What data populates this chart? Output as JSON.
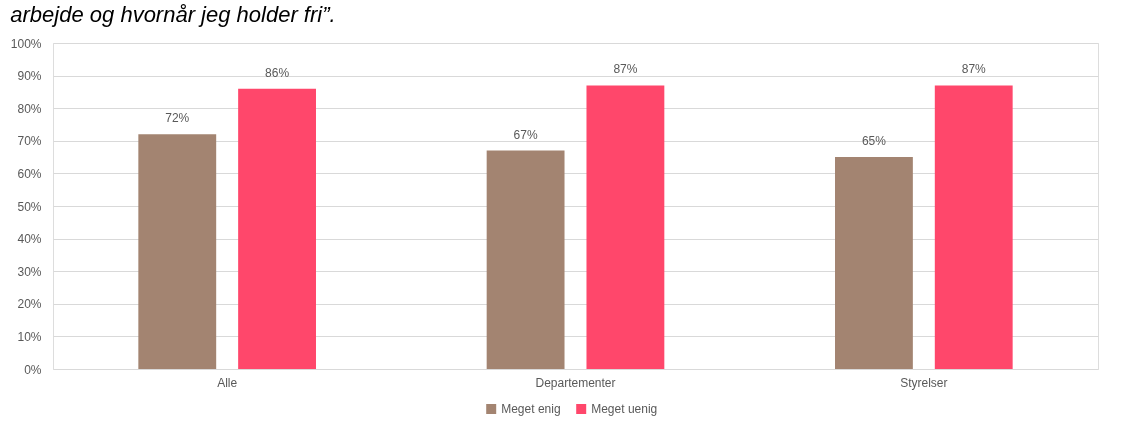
{
  "chart_data": {
    "type": "bar",
    "title": "arbejde og hvornår jeg holder fri”.",
    "categories": [
      "Alle",
      "Departementer",
      "Styrelser"
    ],
    "series": [
      {
        "name": "Meget enig",
        "color": "#a38471",
        "values": [
          72,
          67,
          65
        ],
        "value_labels": [
          "72%",
          "67%",
          "65%"
        ]
      },
      {
        "name": "Meget uenig",
        "color": "#ff476b",
        "values": [
          86,
          87,
          87
        ],
        "value_labels": [
          "86%",
          "87%",
          "87%"
        ]
      }
    ],
    "ylim": [
      0,
      100
    ],
    "yticks": [
      {
        "value": 0,
        "label": "0%"
      },
      {
        "value": 10,
        "label": "10%"
      },
      {
        "value": 20,
        "label": "20%"
      },
      {
        "value": 30,
        "label": "30%"
      },
      {
        "value": 40,
        "label": "40%"
      },
      {
        "value": 50,
        "label": "50%"
      },
      {
        "value": 60,
        "label": "60%"
      },
      {
        "value": 70,
        "label": "70%"
      },
      {
        "value": 80,
        "label": "80%"
      },
      {
        "value": 90,
        "label": "90%"
      },
      {
        "value": 100,
        "label": "100%"
      }
    ],
    "grid": "y",
    "legend": "bottom"
  }
}
